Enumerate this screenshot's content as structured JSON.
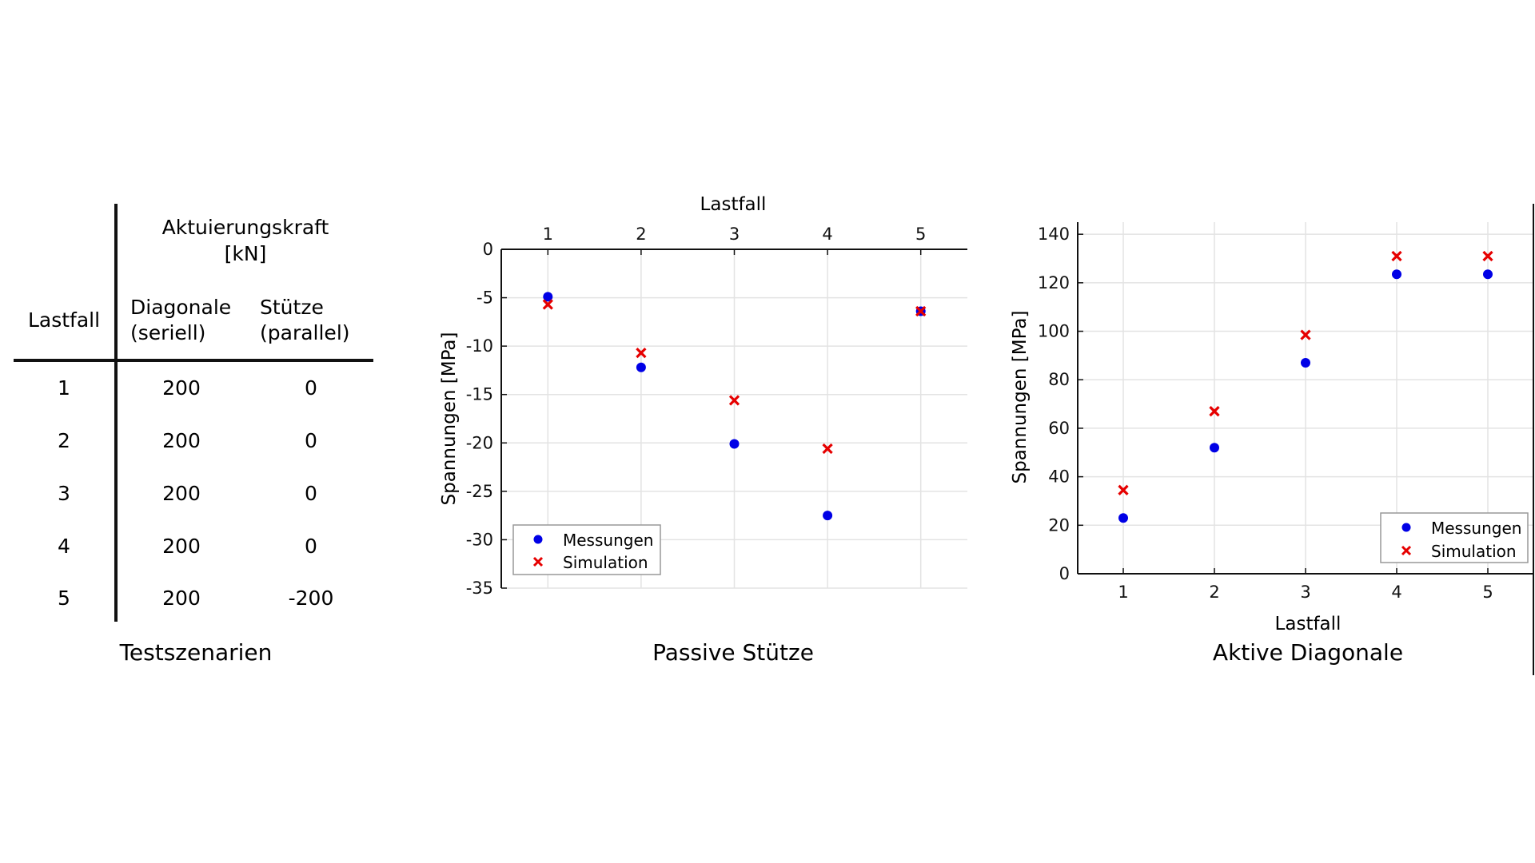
{
  "colors": {
    "messungen": "#0000e6",
    "simulation": "#e60000",
    "grid": "#e3e3e3",
    "axis": "#111111"
  },
  "table": {
    "caption": "Testszenarien",
    "header_group": [
      "Aktuierungskraft",
      "[kN]"
    ],
    "col_lastfall": "Lastfall",
    "col_diagonale": [
      "Diagonale",
      "(seriell)"
    ],
    "col_stuetze": [
      "Stütze",
      "(parallel)"
    ],
    "rows": [
      {
        "lastfall": "1",
        "diagonale": "200",
        "stuetze": "0"
      },
      {
        "lastfall": "2",
        "diagonale": "200",
        "stuetze": "0"
      },
      {
        "lastfall": "3",
        "diagonale": "200",
        "stuetze": "0"
      },
      {
        "lastfall": "4",
        "diagonale": "200",
        "stuetze": "0"
      },
      {
        "lastfall": "5",
        "diagonale": "200",
        "stuetze": "-200"
      }
    ]
  },
  "chart_data": [
    {
      "type": "scatter",
      "caption": "Passive Stütze",
      "xlabel": "Lastfall",
      "ylabel": "Spannungen [MPa]",
      "x": [
        1,
        2,
        3,
        4,
        5
      ],
      "xticks": [
        "1",
        "2",
        "3",
        "4",
        "5"
      ],
      "xlim": [
        0.5,
        5.5
      ],
      "ylim": [
        -35,
        0
      ],
      "yticks": [
        0,
        -5,
        -10,
        -15,
        -20,
        -25,
        -30,
        -35
      ],
      "x_axis_position": "top",
      "grid": true,
      "legend_position": "bottom-left",
      "series": [
        {
          "name": "Messungen",
          "marker": "dot",
          "values": [
            -4.9,
            -12.2,
            -20.1,
            -27.5,
            -6.4
          ]
        },
        {
          "name": "Simulation",
          "marker": "x",
          "values": [
            -5.7,
            -10.7,
            -15.6,
            -20.6,
            -6.4
          ]
        }
      ]
    },
    {
      "type": "scatter",
      "caption": "Aktive Diagonale",
      "xlabel": "Lastfall",
      "ylabel": "Spannungen [MPa]",
      "x": [
        1,
        2,
        3,
        4,
        5
      ],
      "xticks": [
        "1",
        "2",
        "3",
        "4",
        "5"
      ],
      "xlim": [
        0.5,
        5.5
      ],
      "ylim": [
        0,
        145
      ],
      "yticks": [
        0,
        20,
        40,
        60,
        80,
        100,
        120,
        140
      ],
      "x_axis_position": "bottom",
      "grid": true,
      "legend_position": "bottom-right",
      "series": [
        {
          "name": "Messungen",
          "marker": "dot",
          "values": [
            23,
            52,
            87,
            123.5,
            123.5
          ]
        },
        {
          "name": "Simulation",
          "marker": "x",
          "values": [
            34.5,
            67,
            98.5,
            131,
            131
          ]
        }
      ]
    }
  ]
}
